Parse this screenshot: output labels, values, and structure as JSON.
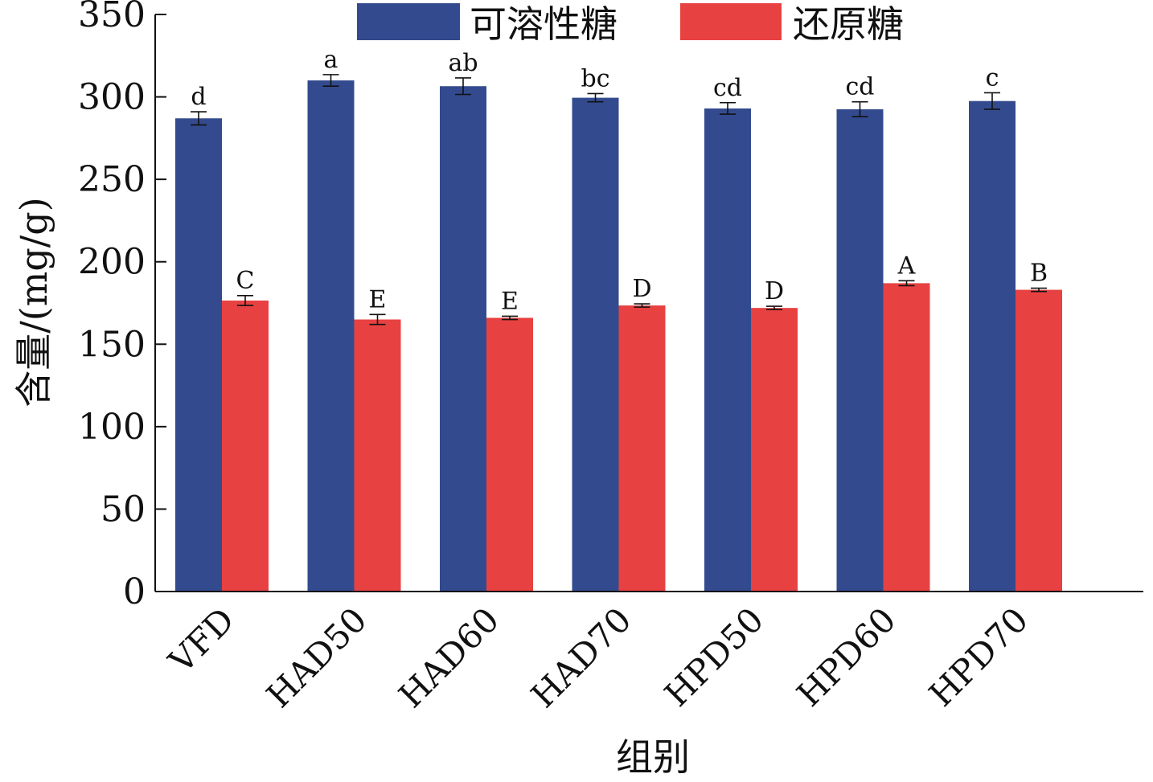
{
  "chart_data": {
    "type": "bar",
    "categories": [
      "VFD",
      "HAD50",
      "HAD60",
      "HAD70",
      "HPD50",
      "HPD60",
      "HPD70"
    ],
    "series": [
      {
        "name": "可溶性糖",
        "color": "#334b8e",
        "values": [
          287,
          310,
          306.5,
          299.5,
          293,
          292.5,
          297.5
        ],
        "errors": [
          4,
          3.5,
          5,
          2.5,
          3.5,
          4.5,
          5
        ],
        "labels": [
          "d",
          "a",
          "ab",
          "bc",
          "cd",
          "cd",
          "c"
        ]
      },
      {
        "name": "还原糖",
        "color": "#e84141",
        "values": [
          176.5,
          165,
          166,
          173.5,
          172,
          187,
          183
        ],
        "errors": [
          3,
          3,
          1,
          1,
          1,
          1.5,
          1
        ],
        "labels": [
          "C",
          "E",
          "E",
          "D",
          "D",
          "A",
          "B"
        ]
      }
    ],
    "xlabel": "组别",
    "ylabel": "含量/(mg/g)",
    "ylim": [
      0,
      350
    ],
    "yticks": [
      0,
      50,
      100,
      150,
      200,
      250,
      300,
      350
    ],
    "grid": false,
    "legend_position": "top"
  }
}
